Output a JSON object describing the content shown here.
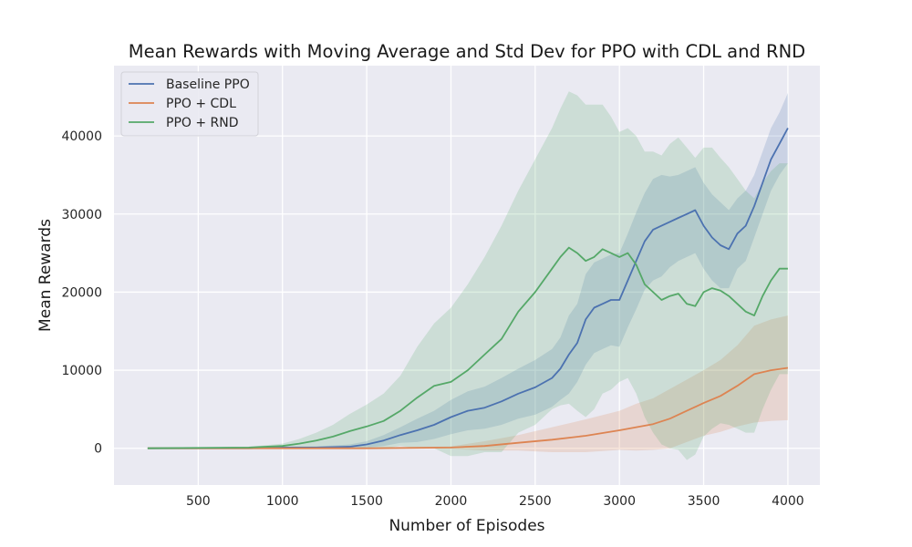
{
  "chart_data": {
    "type": "line",
    "title": "Mean Rewards with Moving Average and Std Dev for PPO with CDL and RND",
    "xlabel": "Number of Episodes",
    "ylabel": "Mean Rewards",
    "xlim": [
      0,
      4190
    ],
    "ylim": [
      -4700,
      49000
    ],
    "xticks": [
      500,
      1000,
      1500,
      2000,
      2500,
      3000,
      3500,
      4000
    ],
    "yticks": [
      0,
      10000,
      20000,
      30000,
      40000
    ],
    "grid": true,
    "legend_position": "top-left",
    "series": [
      {
        "name": "Baseline PPO",
        "color": "#4c72b0",
        "x": [
          200,
          800,
          1000,
          1200,
          1400,
          1500,
          1600,
          1700,
          1800,
          1900,
          2000,
          2100,
          2200,
          2300,
          2400,
          2500,
          2600,
          2650,
          2700,
          2750,
          2800,
          2850,
          2900,
          2950,
          3000,
          3050,
          3100,
          3150,
          3200,
          3250,
          3300,
          3350,
          3400,
          3450,
          3500,
          3550,
          3600,
          3650,
          3700,
          3750,
          3800,
          3850,
          3900,
          3950,
          4000
        ],
        "y": [
          0,
          0,
          100,
          100,
          200,
          500,
          1000,
          1700,
          2300,
          3000,
          4000,
          4800,
          5200,
          6000,
          7000,
          7800,
          9000,
          10200,
          12000,
          13500,
          16500,
          18000,
          18500,
          19000,
          19000,
          21500,
          24000,
          26500,
          28000,
          28500,
          29000,
          29500,
          30000,
          30500,
          28500,
          27000,
          26000,
          25500,
          27500,
          28500,
          31000,
          34000,
          37000,
          39000,
          41000
        ],
        "std": [
          0,
          0,
          100,
          150,
          300,
          400,
          700,
          1000,
          1500,
          1800,
          2200,
          2500,
          2700,
          3000,
          3200,
          3500,
          3700,
          4000,
          5000,
          5000,
          5800,
          5800,
          5800,
          5800,
          6000,
          6000,
          6200,
          6200,
          6500,
          6500,
          5800,
          5500,
          5500,
          5500,
          5500,
          5500,
          5500,
          5000,
          4500,
          4500,
          4000,
          4000,
          4000,
          4000,
          4500
        ]
      },
      {
        "name": "PPO + CDL",
        "color": "#dd8452",
        "x": [
          200,
          1000,
          1500,
          2000,
          2200,
          2400,
          2600,
          2800,
          3000,
          3100,
          3200,
          3300,
          3400,
          3500,
          3600,
          3700,
          3800,
          3900,
          4000
        ],
        "y": [
          0,
          0,
          0,
          100,
          300,
          700,
          1100,
          1600,
          2300,
          2700,
          3100,
          3800,
          4800,
          5800,
          6700,
          8000,
          9500,
          10000,
          10300
        ],
        "std": [
          0,
          0,
          0,
          150,
          600,
          1000,
          1600,
          2100,
          2500,
          3000,
          3300,
          3800,
          4000,
          4200,
          4600,
          5200,
          6200,
          6500,
          6700
        ]
      },
      {
        "name": "PPO + RND",
        "color": "#55a868",
        "x": [
          200,
          800,
          1000,
          1100,
          1200,
          1300,
          1400,
          1500,
          1600,
          1700,
          1800,
          1900,
          2000,
          2100,
          2200,
          2300,
          2400,
          2500,
          2600,
          2650,
          2700,
          2750,
          2800,
          2850,
          2900,
          2950,
          3000,
          3050,
          3100,
          3150,
          3200,
          3250,
          3300,
          3350,
          3400,
          3450,
          3500,
          3550,
          3600,
          3650,
          3700,
          3750,
          3800,
          3850,
          3900,
          3950,
          4000
        ],
        "y": [
          0,
          100,
          300,
          600,
          1000,
          1500,
          2200,
          2800,
          3500,
          4800,
          6500,
          8000,
          8500,
          10000,
          12000,
          14000,
          17500,
          20000,
          23000,
          24500,
          25700,
          25000,
          24000,
          24500,
          25500,
          25000,
          24500,
          25000,
          23500,
          21000,
          20000,
          19000,
          19500,
          19800,
          18500,
          18200,
          20000,
          20500,
          20200,
          19500,
          18500,
          17500,
          17000,
          19500,
          21500,
          23000,
          23000
        ],
        "std": [
          0,
          100,
          300,
          600,
          1000,
          1500,
          2200,
          2800,
          3500,
          4500,
          6500,
          8000,
          9500,
          11000,
          12500,
          14500,
          15500,
          17000,
          18000,
          19000,
          20000,
          20200,
          20000,
          19500,
          18500,
          17500,
          16000,
          16000,
          16500,
          17000,
          18000,
          18500,
          19500,
          20000,
          20000,
          19000,
          18500,
          18000,
          17000,
          16500,
          16000,
          15500,
          15000,
          14500,
          14000,
          13500,
          13500
        ]
      }
    ]
  }
}
